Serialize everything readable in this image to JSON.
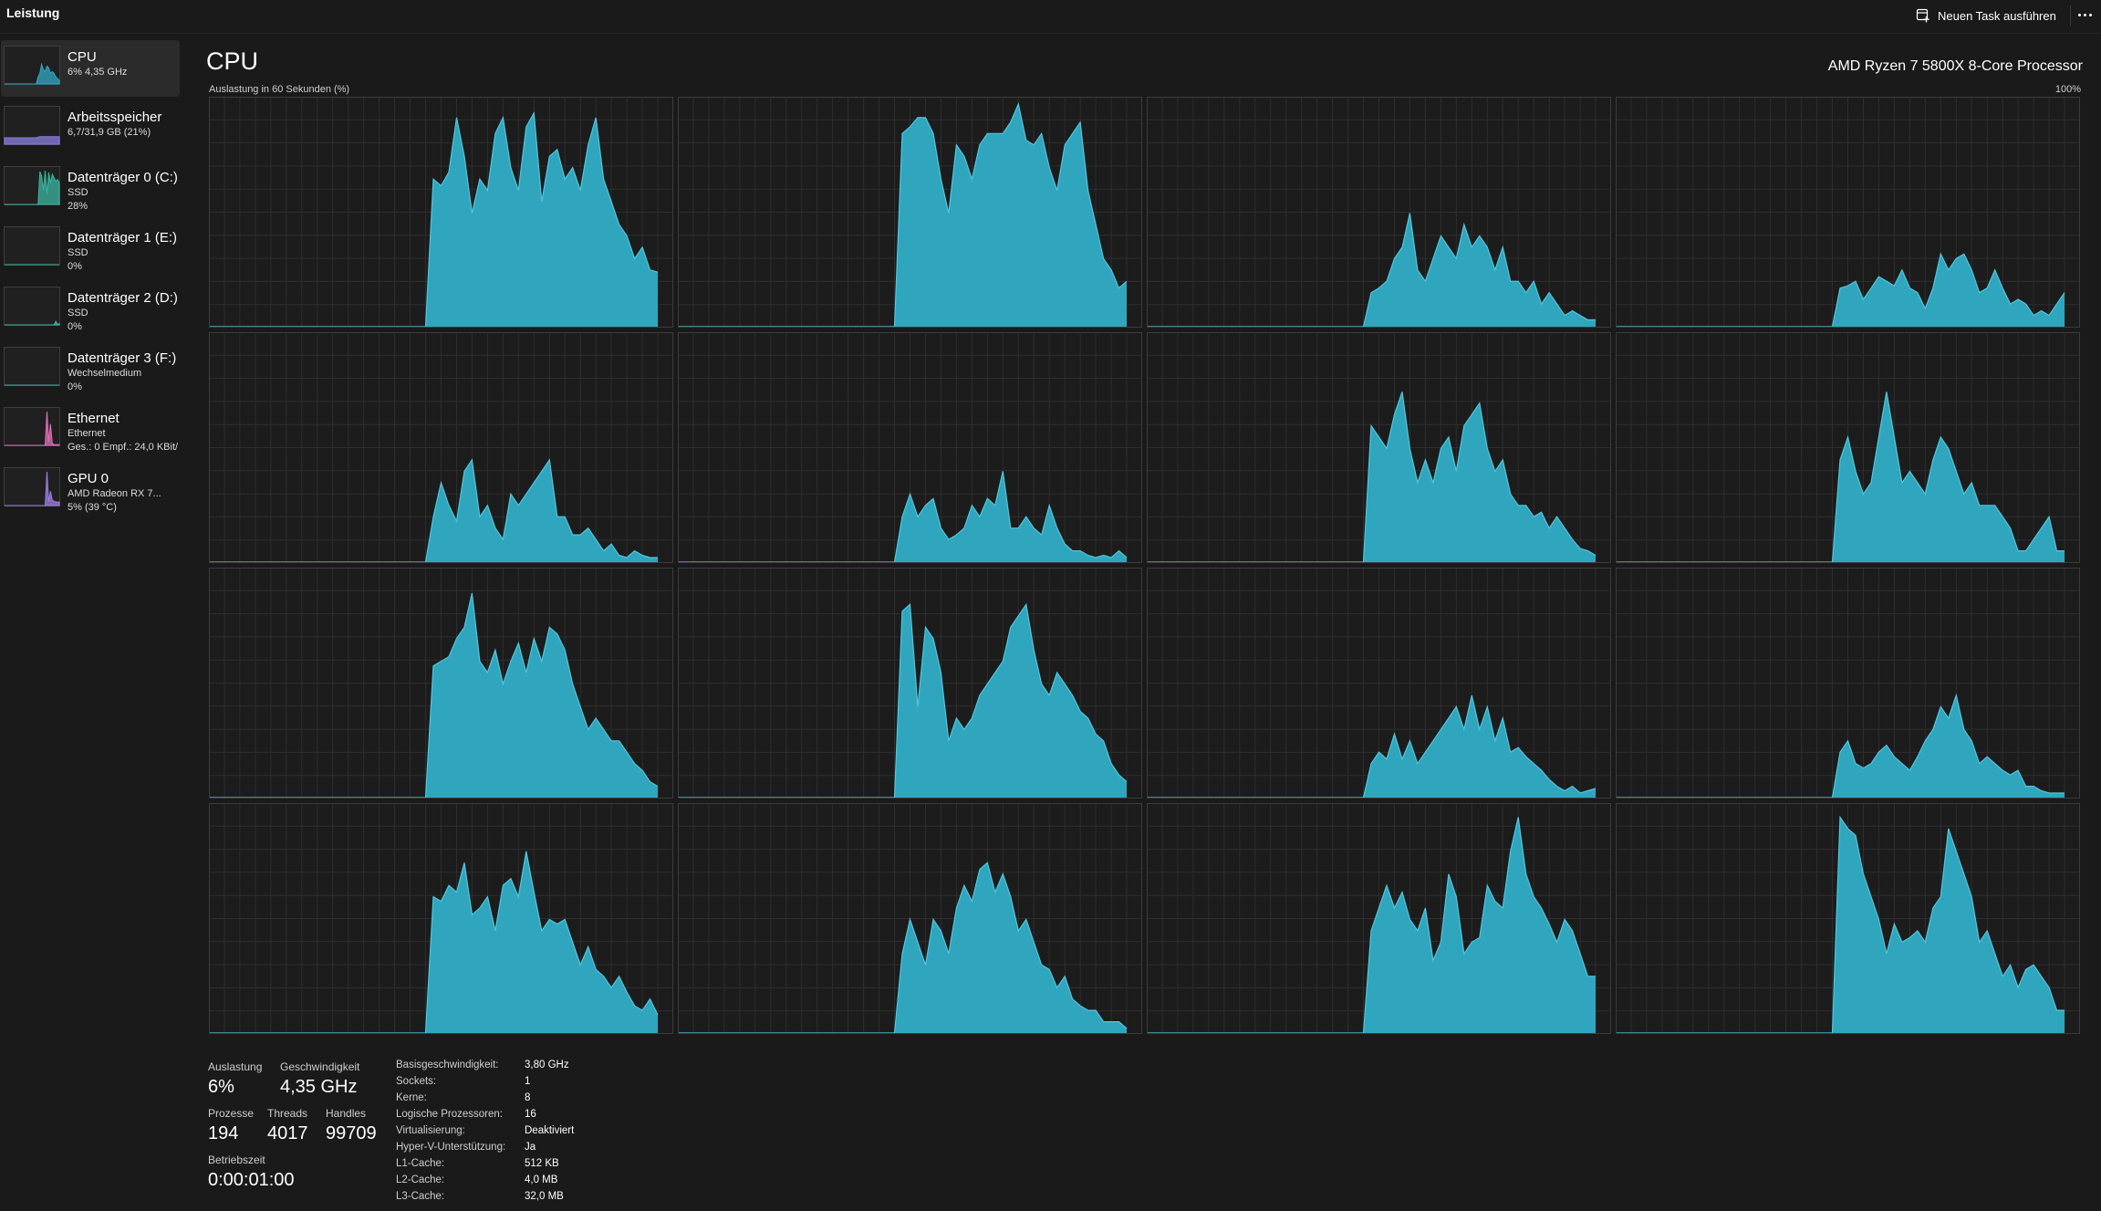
{
  "app_title": "Leistung",
  "toolbar": {
    "run_task_label": "Neuen Task ausführen"
  },
  "sidebar": {
    "items": [
      {
        "title": "CPU",
        "lines": [
          "6% 4,35 GHz"
        ],
        "color": "#31a8c2"
      },
      {
        "title": "Arbeitsspeicher",
        "lines": [
          "6,7/31,9 GB (21%)"
        ],
        "color": "#8a7fe0"
      },
      {
        "title": "Datenträger 0 (C:)",
        "lines": [
          "SSD",
          "28%"
        ],
        "color": "#3ab5a0"
      },
      {
        "title": "Datenträger 1 (E:)",
        "lines": [
          "SSD",
          "0%"
        ],
        "color": "#3ab5a0"
      },
      {
        "title": "Datenträger 2 (D:)",
        "lines": [
          "SSD",
          "0%"
        ],
        "color": "#3ab5a0"
      },
      {
        "title": "Datenträger 3 (F:)",
        "lines": [
          "Wechselmedium",
          "0%"
        ],
        "color": "#3ab5a0"
      },
      {
        "title": "Ethernet",
        "lines": [
          "Ethernet",
          "Ges.: 0 Empf.: 24,0 KBit/"
        ],
        "color": "#e070b8"
      },
      {
        "title": "GPU 0",
        "lines": [
          "AMD Radeon RX 7...",
          "5% (39 °C)"
        ],
        "color": "#a07fe0"
      }
    ]
  },
  "main": {
    "title": "CPU",
    "cpu_model": "AMD Ryzen 7 5800X 8-Core Processor",
    "chart_label": "Auslastung in 60 Sekunden (%)",
    "chart_max": "100%"
  },
  "colors": {
    "graph_fill": "#2fa6bd",
    "graph_line": "#53c6dc",
    "grid": "#2e2e2e",
    "border": "#3c3c3c"
  },
  "chart_data": {
    "type": "area",
    "title": "",
    "ylim": [
      0,
      100
    ],
    "x_window_seconds": 60,
    "x_start_index": 28,
    "series": [
      {
        "values": [
          0,
          65,
          62,
          68,
          92,
          75,
          50,
          65,
          60,
          85,
          92,
          70,
          60,
          88,
          94,
          55,
          75,
          78,
          65,
          70,
          60,
          80,
          92,
          65,
          55,
          45,
          40,
          30,
          35,
          25,
          24
        ]
      },
      {
        "values": [
          0,
          85,
          88,
          92,
          92,
          85,
          65,
          50,
          80,
          75,
          65,
          80,
          85,
          85,
          85,
          90,
          98,
          82,
          80,
          85,
          70,
          60,
          80,
          85,
          90,
          60,
          45,
          30,
          25,
          17,
          20
        ]
      },
      {
        "values": [
          0,
          15,
          17,
          20,
          30,
          35,
          50,
          25,
          20,
          30,
          40,
          35,
          30,
          45,
          35,
          40,
          35,
          25,
          35,
          20,
          20,
          15,
          20,
          10,
          15,
          10,
          5,
          7,
          5,
          3,
          3
        ]
      },
      {
        "values": [
          0,
          17,
          18,
          20,
          12,
          17,
          22,
          20,
          18,
          25,
          17,
          15,
          8,
          17,
          32,
          25,
          30,
          32,
          25,
          15,
          17,
          25,
          17,
          10,
          12,
          10,
          5,
          7,
          5,
          10,
          15
        ]
      },
      {
        "values": [
          0,
          20,
          35,
          25,
          18,
          40,
          45,
          20,
          25,
          15,
          10,
          30,
          25,
          30,
          35,
          40,
          45,
          20,
          20,
          12,
          12,
          15,
          10,
          5,
          8,
          3,
          2,
          5,
          3,
          2,
          2
        ]
      },
      {
        "values": [
          0,
          20,
          30,
          20,
          25,
          28,
          15,
          10,
          12,
          15,
          25,
          20,
          28,
          25,
          40,
          15,
          15,
          20,
          15,
          12,
          25,
          15,
          8,
          5,
          5,
          3,
          2,
          3,
          2,
          5,
          2
        ]
      },
      {
        "values": [
          0,
          60,
          55,
          50,
          65,
          75,
          50,
          35,
          45,
          35,
          50,
          55,
          40,
          60,
          65,
          70,
          50,
          40,
          45,
          30,
          25,
          25,
          20,
          22,
          15,
          20,
          15,
          10,
          6,
          5,
          3
        ]
      },
      {
        "values": [
          0,
          45,
          55,
          40,
          30,
          35,
          55,
          75,
          55,
          35,
          40,
          35,
          30,
          45,
          55,
          50,
          40,
          30,
          35,
          25,
          25,
          25,
          20,
          15,
          5,
          5,
          10,
          15,
          20,
          5,
          5
        ]
      },
      {
        "values": [
          0,
          58,
          60,
          62,
          70,
          75,
          90,
          60,
          55,
          65,
          50,
          60,
          68,
          55,
          70,
          60,
          75,
          72,
          65,
          50,
          40,
          30,
          35,
          30,
          25,
          25,
          20,
          15,
          12,
          7,
          5
        ]
      },
      {
        "values": [
          0,
          82,
          85,
          40,
          75,
          70,
          55,
          25,
          35,
          30,
          35,
          45,
          50,
          55,
          60,
          75,
          80,
          85,
          65,
          50,
          45,
          55,
          50,
          45,
          38,
          35,
          28,
          25,
          15,
          10,
          7
        ]
      },
      {
        "values": [
          0,
          15,
          20,
          17,
          28,
          17,
          25,
          15,
          20,
          25,
          30,
          35,
          40,
          30,
          45,
          30,
          40,
          25,
          35,
          20,
          22,
          18,
          15,
          12,
          8,
          5,
          3,
          5,
          2,
          3,
          4
        ]
      },
      {
        "values": [
          0,
          20,
          25,
          15,
          13,
          15,
          20,
          23,
          18,
          15,
          12,
          18,
          25,
          30,
          40,
          35,
          45,
          30,
          25,
          15,
          18,
          15,
          12,
          10,
          12,
          5,
          5,
          3,
          2,
          2,
          2
        ]
      },
      {
        "values": [
          0,
          60,
          58,
          65,
          62,
          75,
          52,
          55,
          60,
          45,
          65,
          68,
          60,
          80,
          62,
          45,
          50,
          48,
          50,
          40,
          30,
          38,
          28,
          25,
          20,
          25,
          18,
          12,
          10,
          15,
          8
        ]
      },
      {
        "values": [
          0,
          35,
          50,
          40,
          30,
          50,
          45,
          35,
          55,
          65,
          58,
          72,
          75,
          62,
          70,
          60,
          45,
          50,
          40,
          30,
          28,
          20,
          25,
          15,
          12,
          10,
          10,
          5,
          5,
          5,
          2
        ]
      },
      {
        "values": [
          0,
          45,
          55,
          65,
          55,
          62,
          50,
          45,
          55,
          32,
          40,
          70,
          60,
          35,
          40,
          42,
          65,
          58,
          55,
          80,
          95,
          70,
          60,
          55,
          48,
          40,
          50,
          45,
          35,
          25,
          25
        ]
      },
      {
        "values": [
          0,
          95,
          90,
          87,
          70,
          60,
          50,
          35,
          48,
          40,
          42,
          45,
          40,
          55,
          60,
          90,
          80,
          70,
          60,
          40,
          45,
          35,
          25,
          30,
          20,
          28,
          30,
          25,
          20,
          10,
          10
        ]
      }
    ]
  },
  "stats": {
    "utilization": {
      "label": "Auslastung",
      "value": "6%"
    },
    "speed": {
      "label": "Geschwindigkeit",
      "value": "4,35 GHz"
    },
    "processes": {
      "label": "Prozesse",
      "value": "194"
    },
    "threads": {
      "label": "Threads",
      "value": "4017"
    },
    "handles": {
      "label": "Handles",
      "value": "99709"
    },
    "uptime": {
      "label": "Betriebszeit",
      "value": "0:00:01:00"
    }
  },
  "specs": [
    {
      "label": "Basisgeschwindigkeit:",
      "value": "3,80 GHz"
    },
    {
      "label": "Sockets:",
      "value": "1"
    },
    {
      "label": "Kerne:",
      "value": "8"
    },
    {
      "label": "Logische Prozessoren:",
      "value": "16"
    },
    {
      "label": "Virtualisierung:",
      "value": "Deaktiviert"
    },
    {
      "label": "Hyper-V-Unterstützung:",
      "value": "Ja"
    },
    {
      "label": "L1-Cache:",
      "value": "512 KB"
    },
    {
      "label": "L2-Cache:",
      "value": "4,0 MB"
    },
    {
      "label": "L3-Cache:",
      "value": "32,0 MB"
    }
  ]
}
